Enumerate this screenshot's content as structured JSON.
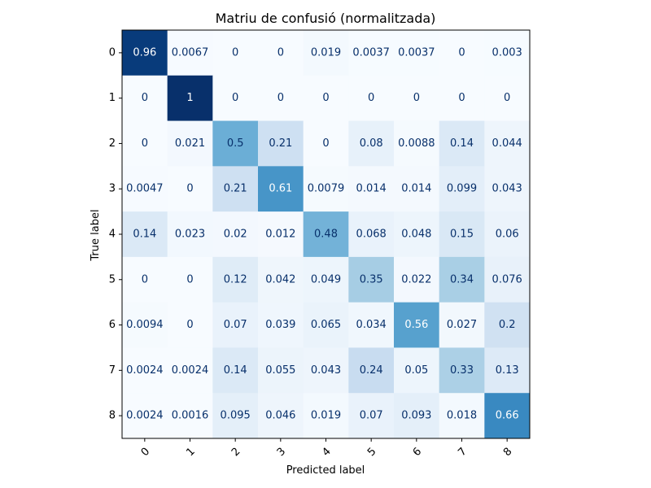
{
  "chart_data": {
    "type": "heatmap",
    "title": "Matriu de confusió (normalitzada)",
    "xlabel": "Predicted label",
    "ylabel": "True label",
    "x_categories": [
      "0",
      "1",
      "2",
      "3",
      "4",
      "5",
      "6",
      "7",
      "8"
    ],
    "y_categories": [
      "0",
      "1",
      "2",
      "3",
      "4",
      "5",
      "6",
      "7",
      "8"
    ],
    "colormap": "Blues",
    "grid": false,
    "cell_labels": [
      [
        "0.96",
        "0.0067",
        "0",
        "0",
        "0.019",
        "0.0037",
        "0.0037",
        "0",
        "0.003"
      ],
      [
        "0",
        "1",
        "0",
        "0",
        "0",
        "0",
        "0",
        "0",
        "0"
      ],
      [
        "0",
        "0.021",
        "0.5",
        "0.21",
        "0",
        "0.08",
        "0.0088",
        "0.14",
        "0.044"
      ],
      [
        "0.0047",
        "0",
        "0.21",
        "0.61",
        "0.0079",
        "0.014",
        "0.014",
        "0.099",
        "0.043"
      ],
      [
        "0.14",
        "0.023",
        "0.02",
        "0.012",
        "0.48",
        "0.068",
        "0.048",
        "0.15",
        "0.06"
      ],
      [
        "0",
        "0",
        "0.12",
        "0.042",
        "0.049",
        "0.35",
        "0.022",
        "0.34",
        "0.076"
      ],
      [
        "0.0094",
        "0",
        "0.07",
        "0.039",
        "0.065",
        "0.034",
        "0.56",
        "0.027",
        "0.2"
      ],
      [
        "0.0024",
        "0.0024",
        "0.14",
        "0.055",
        "0.043",
        "0.24",
        "0.05",
        "0.33",
        "0.13"
      ],
      [
        "0.0024",
        "0.0016",
        "0.095",
        "0.046",
        "0.019",
        "0.07",
        "0.093",
        "0.018",
        "0.66"
      ]
    ],
    "value_range": [
      0,
      1
    ]
  }
}
